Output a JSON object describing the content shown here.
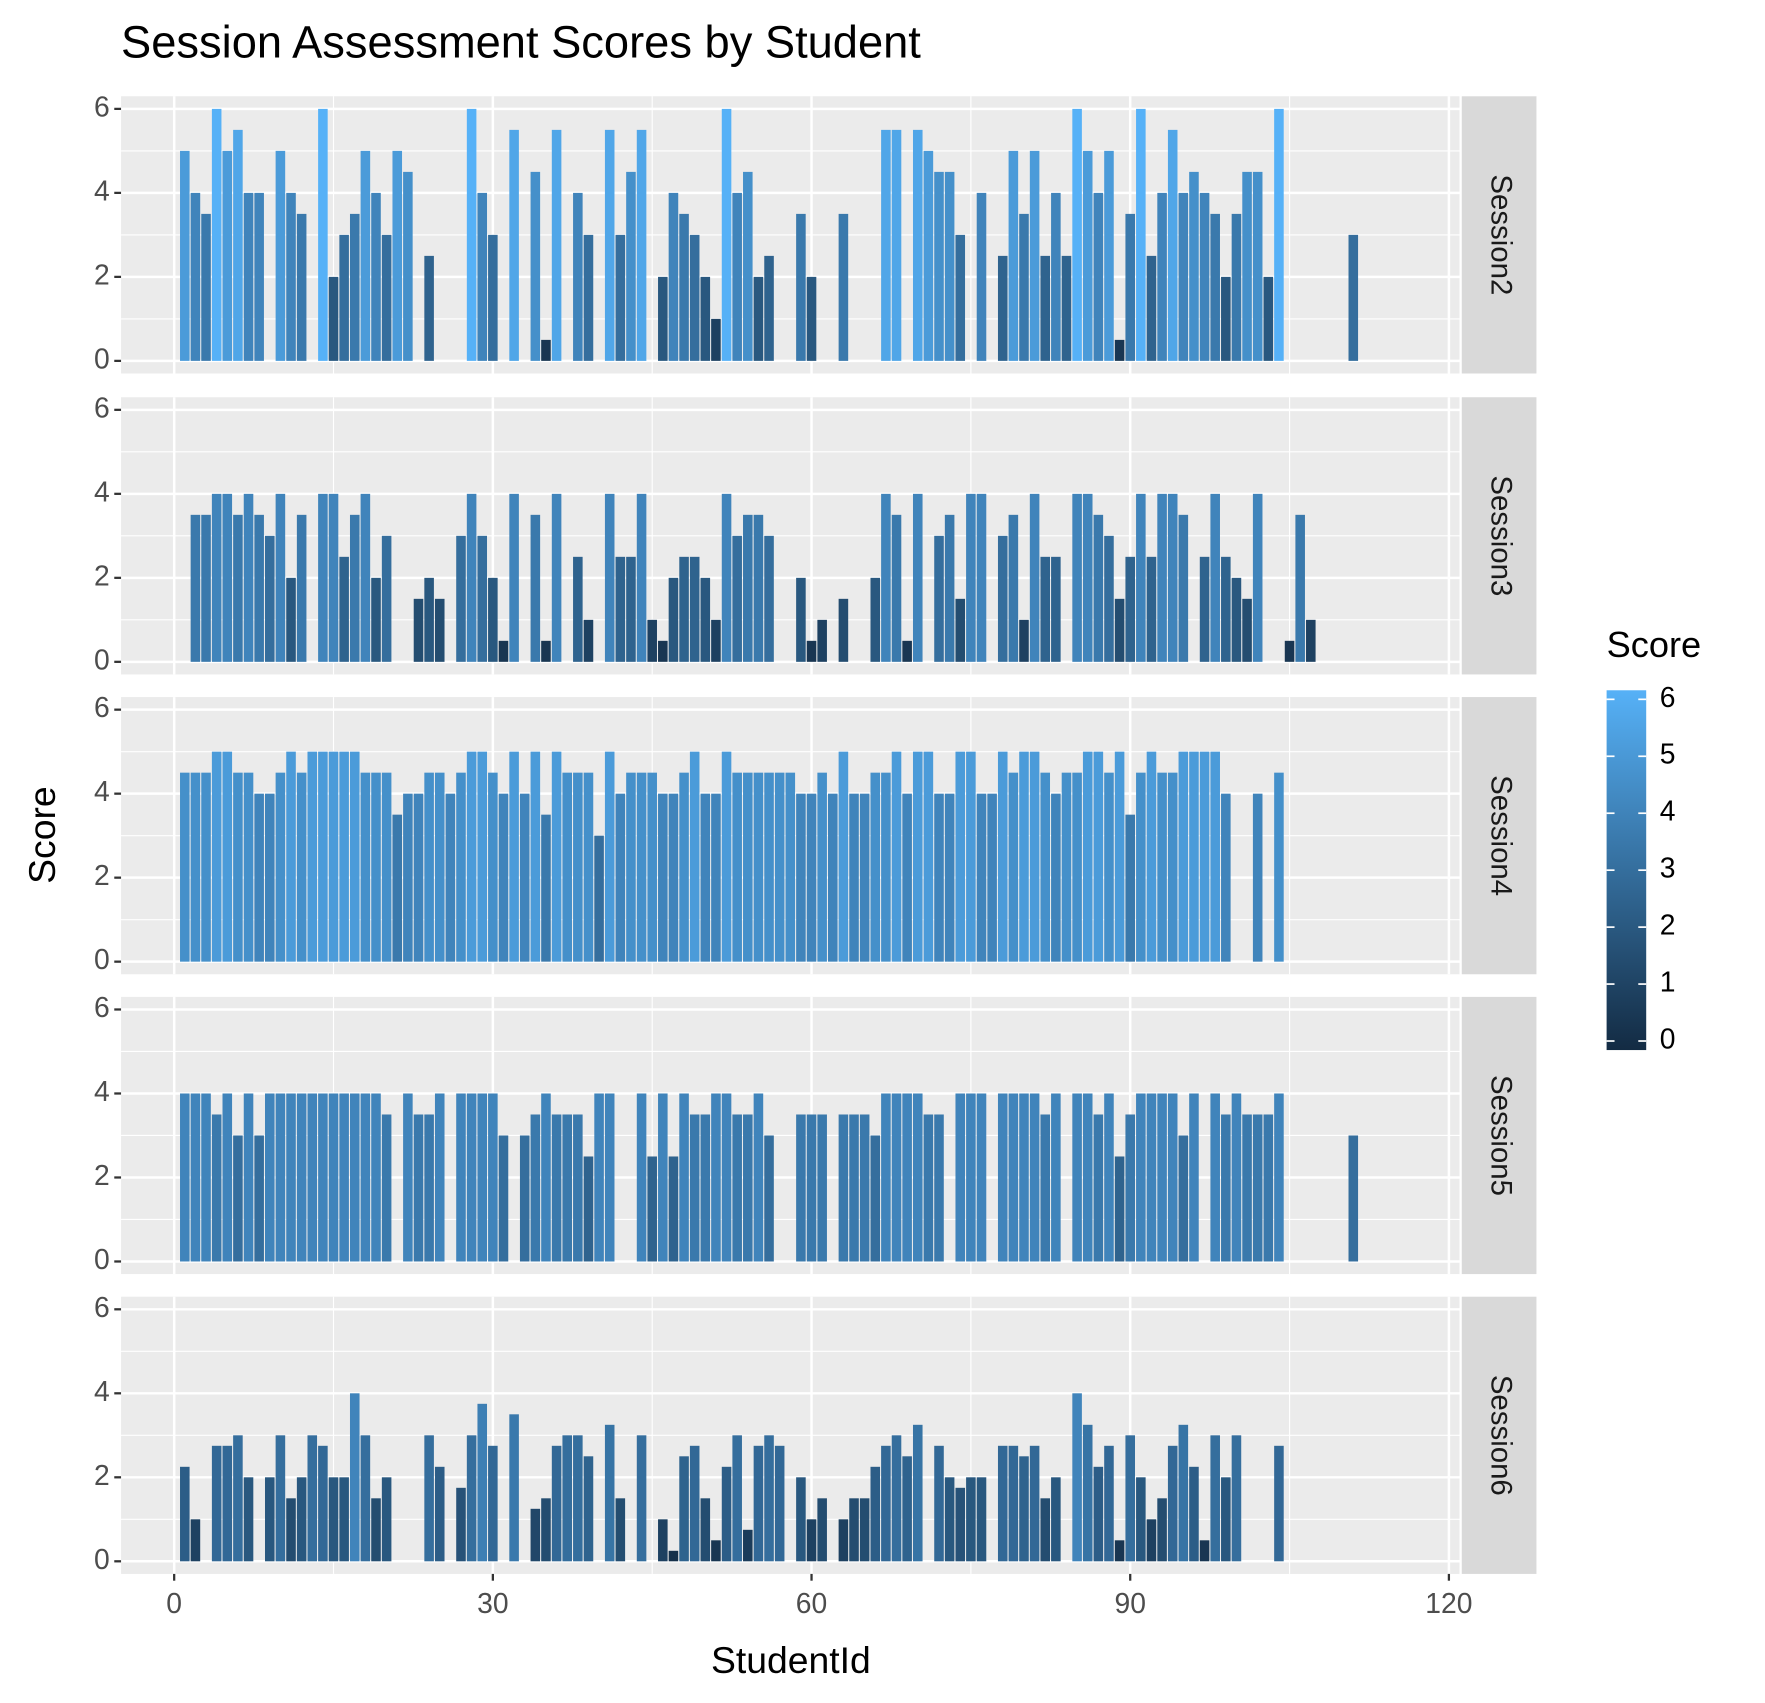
{
  "chart_data": {
    "type": "bar",
    "title": "Session Assessment Scores by Student",
    "x_label": "StudentId",
    "y_label": "Score",
    "xlim": [
      -5,
      121
    ],
    "xticks": [
      0,
      30,
      60,
      90,
      120
    ],
    "ylim": [
      -0.3,
      6.3
    ],
    "yticks": [
      0,
      2,
      4,
      6
    ],
    "grid": true,
    "legend": {
      "title": "Score",
      "position": "right",
      "low": "#132B43",
      "high": "#56B1F7",
      "limits": [
        0,
        6
      ],
      "ticks": [
        0,
        1,
        2,
        3,
        4,
        5,
        6
      ]
    },
    "facets": [
      {
        "label": "Session2",
        "x": [
          1,
          2,
          3,
          4,
          5,
          6,
          7,
          8,
          10,
          11,
          12,
          14,
          15,
          16,
          17,
          18,
          19,
          20,
          21,
          22,
          24,
          28,
          29,
          30,
          32,
          34,
          35,
          36,
          38,
          39,
          41,
          42,
          43,
          44,
          46,
          47,
          48,
          49,
          50,
          51,
          52,
          53,
          54,
          55,
          56,
          59,
          60,
          63,
          67,
          68,
          70,
          71,
          72,
          73,
          74,
          76,
          78,
          79,
          80,
          81,
          82,
          83,
          84,
          85,
          86,
          87,
          88,
          89,
          90,
          91,
          92,
          93,
          94,
          95,
          96,
          97,
          98,
          99,
          100,
          101,
          102,
          103,
          104,
          111
        ],
        "values": [
          5,
          4,
          3.5,
          6,
          5,
          5.5,
          4,
          4,
          5,
          4,
          3.5,
          6,
          2,
          3,
          3.5,
          5,
          4,
          3,
          5,
          4.5,
          2.5,
          6,
          4,
          3,
          5.5,
          4.5,
          0.5,
          5.5,
          4,
          3,
          5.5,
          3,
          4.5,
          5.5,
          2,
          4,
          3.5,
          3,
          2,
          1,
          6,
          4,
          4.5,
          2,
          2.5,
          3.5,
          2,
          3.5,
          5.5,
          5.5,
          5.5,
          5,
          4.5,
          4.5,
          3,
          4,
          2.5,
          5,
          3.5,
          5,
          2.5,
          4,
          2.5,
          6,
          5,
          4,
          5,
          0.5,
          3.5,
          6,
          2.5,
          4,
          5.5,
          4,
          4.5,
          4,
          3.5,
          2,
          3.5,
          4.5,
          4.5,
          2,
          6,
          3
        ]
      },
      {
        "label": "Session3",
        "x": [
          2,
          3,
          4,
          5,
          6,
          7,
          8,
          9,
          10,
          11,
          12,
          14,
          15,
          16,
          17,
          18,
          19,
          20,
          23,
          24,
          25,
          27,
          28,
          29,
          30,
          31,
          32,
          34,
          35,
          36,
          38,
          39,
          41,
          42,
          43,
          44,
          45,
          46,
          47,
          48,
          49,
          50,
          51,
          52,
          53,
          54,
          55,
          56,
          59,
          60,
          61,
          63,
          66,
          67,
          68,
          69,
          70,
          72,
          73,
          74,
          75,
          76,
          78,
          79,
          80,
          81,
          82,
          83,
          85,
          86,
          87,
          88,
          89,
          90,
          91,
          92,
          93,
          94,
          95,
          97,
          98,
          99,
          100,
          101,
          102,
          105,
          106,
          107
        ],
        "values": [
          3.5,
          3.5,
          4,
          4,
          3.5,
          4,
          3.5,
          3,
          4,
          2,
          3.5,
          4,
          4,
          2.5,
          3.5,
          4,
          2,
          3,
          1.5,
          2,
          1.5,
          3,
          4,
          3,
          2,
          0.5,
          4,
          3.5,
          0.5,
          4,
          2.5,
          1,
          4,
          2.5,
          2.5,
          4,
          1,
          0.5,
          2,
          2.5,
          2.5,
          2,
          1,
          4,
          3,
          3.5,
          3.5,
          3,
          2,
          0.5,
          1,
          1.5,
          2,
          4,
          3.5,
          0.5,
          4,
          3,
          3.5,
          1.5,
          4,
          4,
          3,
          3.5,
          1,
          4,
          2.5,
          2.5,
          4,
          4,
          3.5,
          3,
          1.5,
          2.5,
          4,
          2.5,
          4,
          4,
          3.5,
          2.5,
          4,
          2.5,
          2,
          1.5,
          4,
          0.5,
          3.5,
          1
        ]
      },
      {
        "label": "Session4",
        "x": [
          1,
          2,
          3,
          4,
          5,
          6,
          7,
          8,
          9,
          10,
          11,
          12,
          13,
          14,
          15,
          16,
          17,
          18,
          19,
          20,
          21,
          22,
          23,
          24,
          25,
          26,
          27,
          28,
          29,
          30,
          31,
          32,
          33,
          34,
          35,
          36,
          37,
          38,
          39,
          40,
          41,
          42,
          43,
          44,
          45,
          46,
          47,
          48,
          49,
          50,
          51,
          52,
          53,
          54,
          55,
          56,
          57,
          58,
          59,
          60,
          61,
          62,
          63,
          64,
          65,
          66,
          67,
          68,
          69,
          70,
          71,
          72,
          73,
          74,
          75,
          76,
          77,
          78,
          79,
          80,
          81,
          82,
          83,
          84,
          85,
          86,
          87,
          88,
          89,
          90,
          91,
          92,
          93,
          94,
          95,
          96,
          97,
          98,
          99,
          102,
          104
        ],
        "values": [
          4.5,
          4.5,
          4.5,
          5,
          5,
          4.5,
          4.5,
          4,
          4,
          4.5,
          5,
          4.5,
          5,
          5,
          5,
          5,
          5,
          4.5,
          4.5,
          4.5,
          3.5,
          4,
          4,
          4.5,
          4.5,
          4,
          4.5,
          5,
          5,
          4.5,
          4,
          5,
          4,
          5,
          3.5,
          5,
          4.5,
          4.5,
          4.5,
          3,
          5,
          4,
          4.5,
          4.5,
          4.5,
          4,
          4,
          4.5,
          5,
          4,
          4,
          5,
          4.5,
          4.5,
          4.5,
          4.5,
          4.5,
          4.5,
          4,
          4,
          4.5,
          4,
          5,
          4,
          4,
          4.5,
          4.5,
          5,
          4,
          5,
          5,
          4,
          4,
          5,
          5,
          4,
          4,
          5,
          4.5,
          5,
          5,
          4.5,
          4,
          4.5,
          4.5,
          5,
          5,
          4.5,
          5,
          3.5,
          4.5,
          5,
          4.5,
          4.5,
          5,
          5,
          5,
          5,
          4,
          4,
          4.5
        ]
      },
      {
        "label": "Session5",
        "x": [
          1,
          2,
          3,
          4,
          5,
          6,
          7,
          8,
          9,
          10,
          11,
          12,
          13,
          14,
          15,
          16,
          17,
          18,
          19,
          20,
          22,
          23,
          24,
          25,
          27,
          28,
          29,
          30,
          31,
          33,
          34,
          35,
          36,
          37,
          38,
          39,
          40,
          41,
          44,
          45,
          46,
          47,
          48,
          49,
          50,
          51,
          52,
          53,
          54,
          55,
          56,
          59,
          60,
          61,
          63,
          64,
          65,
          66,
          67,
          68,
          69,
          70,
          71,
          72,
          74,
          75,
          76,
          78,
          79,
          80,
          81,
          82,
          83,
          85,
          86,
          87,
          88,
          89,
          90,
          91,
          92,
          93,
          94,
          95,
          96,
          98,
          99,
          100,
          101,
          102,
          103,
          104,
          111
        ],
        "values": [
          4,
          4,
          4,
          3.5,
          4,
          3,
          4,
          3,
          4,
          4,
          4,
          4,
          4,
          4,
          4,
          4,
          4,
          4,
          4,
          3.5,
          4,
          3.5,
          3.5,
          4,
          4,
          4,
          4,
          4,
          3,
          3,
          3.5,
          4,
          3.5,
          3.5,
          3.5,
          2.5,
          4,
          4,
          4,
          2.5,
          4,
          2.5,
          4,
          3.5,
          3.5,
          4,
          4,
          3.5,
          3.5,
          4,
          3,
          3.5,
          3.5,
          3.5,
          3.5,
          3.5,
          3.5,
          3,
          4,
          4,
          4,
          4,
          3.5,
          3.5,
          4,
          4,
          4,
          4,
          4,
          4,
          4,
          3.5,
          4,
          4,
          4,
          3.5,
          4,
          2.5,
          3.5,
          4,
          4,
          4,
          4,
          3,
          4,
          4,
          3.5,
          4,
          3.5,
          3.5,
          3.5,
          4,
          3
        ]
      },
      {
        "label": "Session6",
        "x": [
          1,
          2,
          4,
          5,
          6,
          7,
          9,
          10,
          11,
          12,
          13,
          14,
          15,
          16,
          17,
          18,
          19,
          20,
          24,
          25,
          27,
          28,
          29,
          30,
          32,
          34,
          35,
          36,
          37,
          38,
          39,
          41,
          42,
          44,
          46,
          47,
          48,
          49,
          50,
          51,
          52,
          53,
          54,
          55,
          56,
          57,
          59,
          60,
          61,
          63,
          64,
          65,
          66,
          67,
          68,
          69,
          70,
          72,
          73,
          74,
          75,
          76,
          78,
          79,
          80,
          81,
          82,
          83,
          85,
          86,
          87,
          88,
          89,
          90,
          91,
          92,
          93,
          94,
          95,
          96,
          97,
          98,
          99,
          100,
          104
        ],
        "values": [
          2.25,
          1,
          2.75,
          2.75,
          3,
          2,
          2,
          3,
          1.5,
          2,
          3,
          2.75,
          2,
          2,
          4,
          3,
          1.5,
          2,
          3,
          2.25,
          1.75,
          3,
          3.75,
          2.75,
          3.5,
          1.25,
          1.5,
          2.75,
          3,
          3,
          2.5,
          3.25,
          1.5,
          3,
          1,
          0.25,
          2.5,
          2.75,
          1.5,
          0.5,
          2.25,
          3,
          0.75,
          2.75,
          3,
          2.75,
          2,
          1,
          1.5,
          1,
          1.5,
          1.5,
          2.25,
          2.75,
          3,
          2.5,
          3.25,
          2.75,
          2,
          1.75,
          2,
          2,
          2.75,
          2.75,
          2.5,
          2.75,
          1.5,
          2,
          4,
          3.25,
          2.25,
          2.75,
          0.5,
          3,
          2,
          1,
          1.5,
          2.75,
          3.25,
          2.25,
          0.5,
          3,
          2,
          3,
          2.75
        ]
      }
    ]
  }
}
